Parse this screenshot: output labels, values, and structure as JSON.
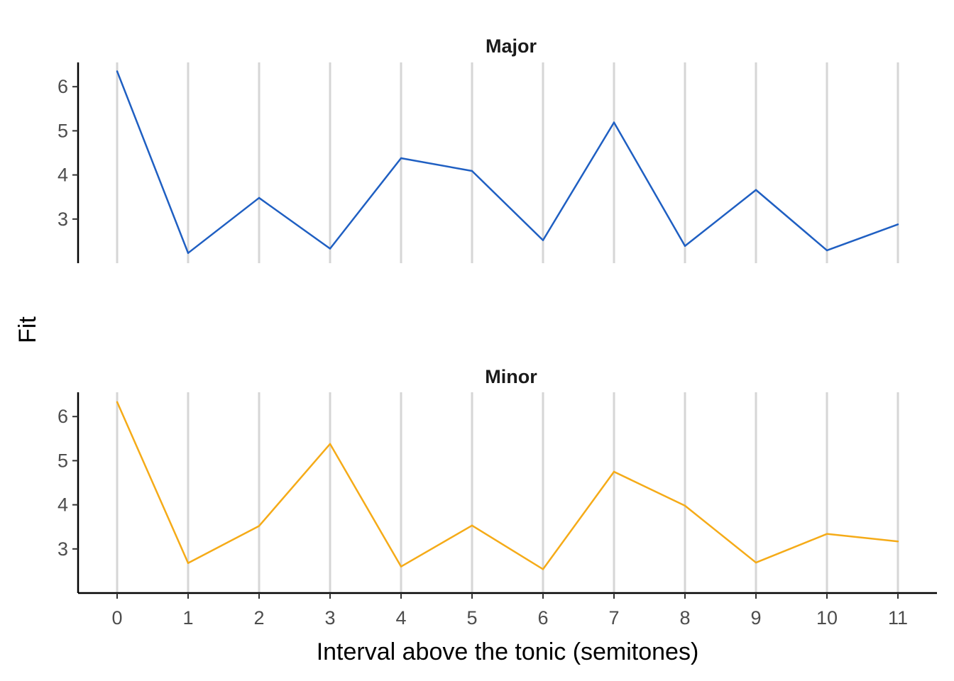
{
  "chart_data": {
    "type": "line",
    "xlabel": "Interval above the tonic (semitones)",
    "ylabel": "Fit",
    "x": [
      0,
      1,
      2,
      3,
      4,
      5,
      6,
      7,
      8,
      9,
      10,
      11
    ],
    "x_tick_labels": [
      "0",
      "1",
      "2",
      "3",
      "4",
      "5",
      "6",
      "7",
      "8",
      "9",
      "10",
      "11"
    ],
    "y_tick_values": [
      3,
      4,
      5,
      6
    ],
    "y_tick_labels": [
      "3",
      "4",
      "5",
      "6"
    ],
    "ylim": [
      2.0,
      6.55
    ],
    "xlim": [
      -0.55,
      11.55
    ],
    "grid": "vertical major lines",
    "facets": [
      {
        "title": "Major",
        "color": "#1f5fc2",
        "values": [
          6.35,
          2.23,
          3.48,
          2.33,
          4.38,
          4.09,
          2.52,
          5.19,
          2.39,
          3.66,
          2.29,
          2.88
        ]
      },
      {
        "title": "Minor",
        "color": "#f5ab18",
        "values": [
          6.33,
          2.68,
          3.52,
          5.38,
          2.6,
          3.53,
          2.54,
          4.75,
          3.98,
          2.69,
          3.34,
          3.17
        ]
      }
    ]
  }
}
